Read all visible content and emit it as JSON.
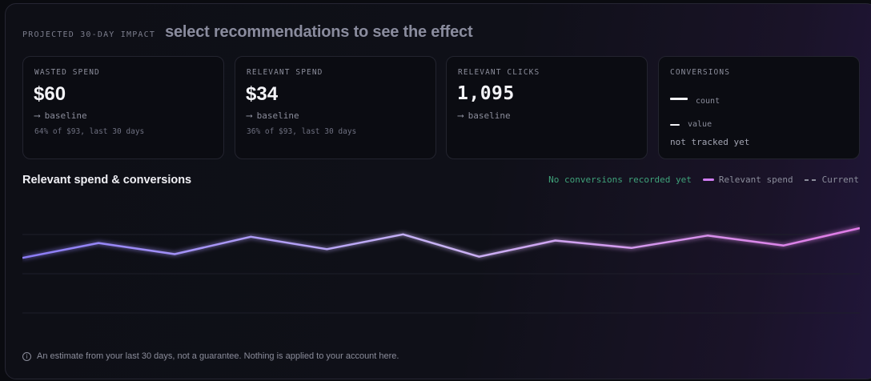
{
  "header": {
    "eyebrow": "PROJECTED 30-DAY IMPACT",
    "headline": "select recommendations to see the effect"
  },
  "cards": {
    "wasted": {
      "label": "WASTED SPEND",
      "value": "$60",
      "delta": "baseline",
      "sub": "64% of $93, last 30 days"
    },
    "relevant": {
      "label": "RELEVANT SPEND",
      "value": "$34",
      "delta": "baseline",
      "sub": "36% of $93, last 30 days"
    },
    "clicks": {
      "label": "RELEVANT CLICKS",
      "value": "1,095",
      "delta": "baseline"
    },
    "conversions": {
      "label": "CONVERSIONS",
      "count_label": "count",
      "value_label": "value",
      "note": "not tracked yet"
    }
  },
  "arrow_glyph": "⟶",
  "chart": {
    "title": "Relevant spend & conversions",
    "no_conversions": "No conversions recorded yet",
    "legend_series": "Relevant spend",
    "legend_current": "Current"
  },
  "chart_data": {
    "type": "line",
    "title": "Relevant spend & conversions",
    "series": [
      {
        "name": "Relevant spend",
        "values": [
          2.2,
          3.4,
          2.5,
          3.9,
          2.9,
          4.1,
          2.3,
          3.6,
          3.0,
          4.0,
          3.2,
          4.6
        ]
      }
    ],
    "colors": {
      "start": "#8b7cf6",
      "mid": "#c9b4f5",
      "end": "#e07ae6"
    },
    "grid": true
  },
  "footnote": {
    "icon": "info-icon",
    "text": "An estimate from your last 30 days, not a guarantee. Nothing is applied to your account here."
  }
}
